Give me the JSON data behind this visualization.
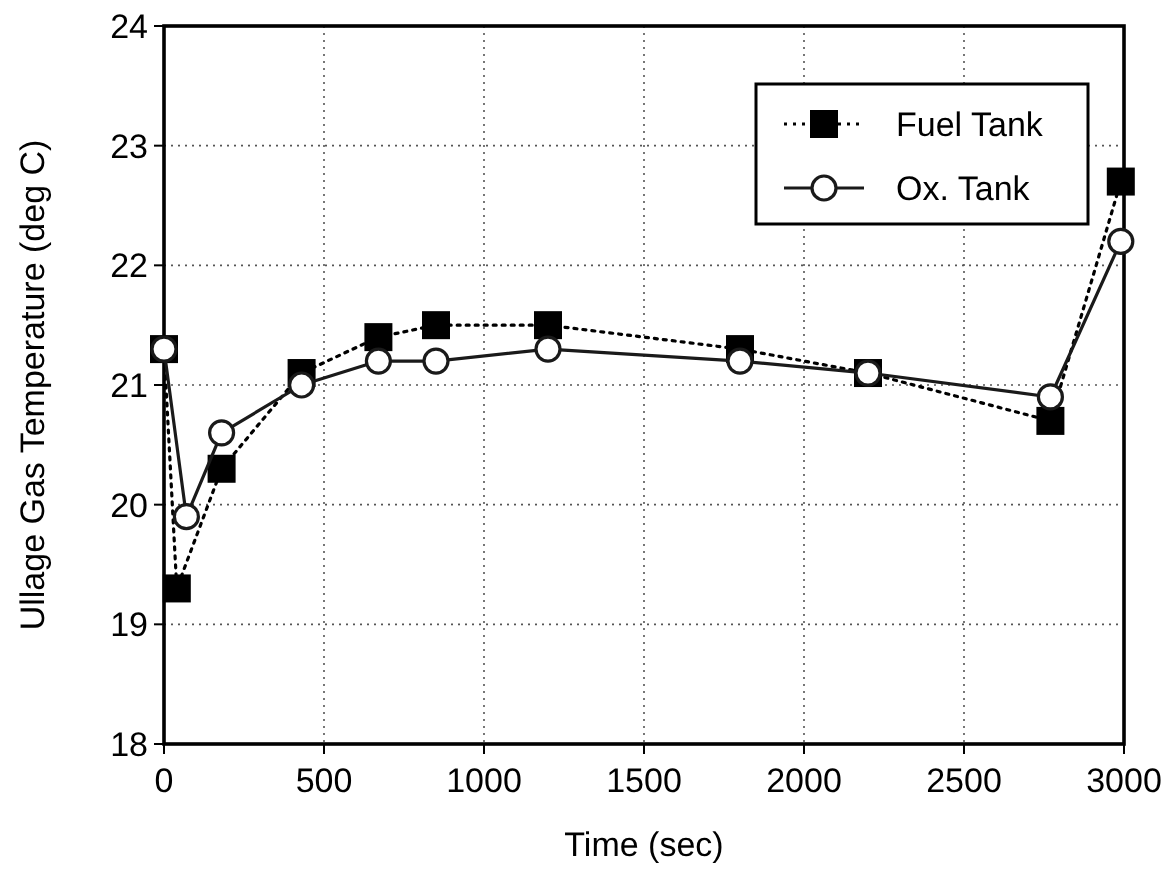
{
  "chart_data": {
    "type": "line",
    "xlabel": "Time (sec)",
    "ylabel": "Ullage Gas Temperature (deg C)",
    "xlim": [
      0,
      3000
    ],
    "xticks": [
      0,
      500,
      1000,
      1500,
      2000,
      2500,
      3000
    ],
    "ylim": [
      18,
      24
    ],
    "yticks": [
      18,
      19,
      20,
      21,
      22,
      23,
      24
    ],
    "grid": true,
    "legend": "top right",
    "series": [
      {
        "name": "Fuel Tank",
        "color": "#000000",
        "marker": "square",
        "line_style": "dotted",
        "x": [
          0,
          40,
          180,
          430,
          670,
          850,
          1200,
          1800,
          2200,
          2770,
          2990
        ],
        "values": [
          21.3,
          19.3,
          20.3,
          21.1,
          21.4,
          21.5,
          21.5,
          21.3,
          21.1,
          20.7,
          22.7
        ]
      },
      {
        "name": "Ox. Tank",
        "color": "#1a1a1a",
        "marker": "circle",
        "line_style": "solid",
        "x": [
          0,
          70,
          180,
          430,
          670,
          850,
          1200,
          1800,
          2200,
          2770,
          2990
        ],
        "values": [
          21.3,
          19.9,
          20.6,
          21.0,
          21.2,
          21.2,
          21.3,
          21.2,
          21.1,
          20.9,
          22.2
        ]
      }
    ]
  }
}
